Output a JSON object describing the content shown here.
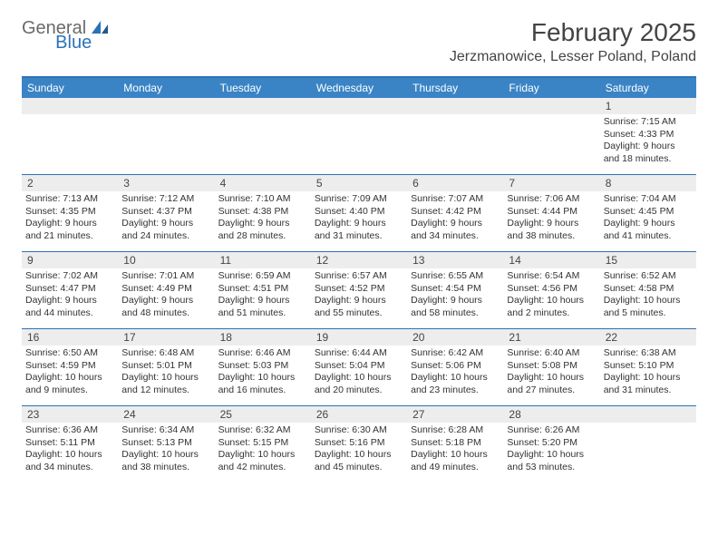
{
  "logo": {
    "general": "General",
    "blue": "Blue"
  },
  "title": "February 2025",
  "location": "Jerzmanowice, Lesser Poland, Poland",
  "colors": {
    "accent": "#3a84c6",
    "header_border": "#2b73b7",
    "daynum_bg": "#ededed",
    "text": "#333333"
  },
  "days_of_week": [
    "Sunday",
    "Monday",
    "Tuesday",
    "Wednesday",
    "Thursday",
    "Friday",
    "Saturday"
  ],
  "weeks": [
    [
      {
        "n": "",
        "sunrise": "",
        "sunset": "",
        "daylight": ""
      },
      {
        "n": "",
        "sunrise": "",
        "sunset": "",
        "daylight": ""
      },
      {
        "n": "",
        "sunrise": "",
        "sunset": "",
        "daylight": ""
      },
      {
        "n": "",
        "sunrise": "",
        "sunset": "",
        "daylight": ""
      },
      {
        "n": "",
        "sunrise": "",
        "sunset": "",
        "daylight": ""
      },
      {
        "n": "",
        "sunrise": "",
        "sunset": "",
        "daylight": ""
      },
      {
        "n": "1",
        "sunrise": "Sunrise: 7:15 AM",
        "sunset": "Sunset: 4:33 PM",
        "daylight": "Daylight: 9 hours and 18 minutes."
      }
    ],
    [
      {
        "n": "2",
        "sunrise": "Sunrise: 7:13 AM",
        "sunset": "Sunset: 4:35 PM",
        "daylight": "Daylight: 9 hours and 21 minutes."
      },
      {
        "n": "3",
        "sunrise": "Sunrise: 7:12 AM",
        "sunset": "Sunset: 4:37 PM",
        "daylight": "Daylight: 9 hours and 24 minutes."
      },
      {
        "n": "4",
        "sunrise": "Sunrise: 7:10 AM",
        "sunset": "Sunset: 4:38 PM",
        "daylight": "Daylight: 9 hours and 28 minutes."
      },
      {
        "n": "5",
        "sunrise": "Sunrise: 7:09 AM",
        "sunset": "Sunset: 4:40 PM",
        "daylight": "Daylight: 9 hours and 31 minutes."
      },
      {
        "n": "6",
        "sunrise": "Sunrise: 7:07 AM",
        "sunset": "Sunset: 4:42 PM",
        "daylight": "Daylight: 9 hours and 34 minutes."
      },
      {
        "n": "7",
        "sunrise": "Sunrise: 7:06 AM",
        "sunset": "Sunset: 4:44 PM",
        "daylight": "Daylight: 9 hours and 38 minutes."
      },
      {
        "n": "8",
        "sunrise": "Sunrise: 7:04 AM",
        "sunset": "Sunset: 4:45 PM",
        "daylight": "Daylight: 9 hours and 41 minutes."
      }
    ],
    [
      {
        "n": "9",
        "sunrise": "Sunrise: 7:02 AM",
        "sunset": "Sunset: 4:47 PM",
        "daylight": "Daylight: 9 hours and 44 minutes."
      },
      {
        "n": "10",
        "sunrise": "Sunrise: 7:01 AM",
        "sunset": "Sunset: 4:49 PM",
        "daylight": "Daylight: 9 hours and 48 minutes."
      },
      {
        "n": "11",
        "sunrise": "Sunrise: 6:59 AM",
        "sunset": "Sunset: 4:51 PM",
        "daylight": "Daylight: 9 hours and 51 minutes."
      },
      {
        "n": "12",
        "sunrise": "Sunrise: 6:57 AM",
        "sunset": "Sunset: 4:52 PM",
        "daylight": "Daylight: 9 hours and 55 minutes."
      },
      {
        "n": "13",
        "sunrise": "Sunrise: 6:55 AM",
        "sunset": "Sunset: 4:54 PM",
        "daylight": "Daylight: 9 hours and 58 minutes."
      },
      {
        "n": "14",
        "sunrise": "Sunrise: 6:54 AM",
        "sunset": "Sunset: 4:56 PM",
        "daylight": "Daylight: 10 hours and 2 minutes."
      },
      {
        "n": "15",
        "sunrise": "Sunrise: 6:52 AM",
        "sunset": "Sunset: 4:58 PM",
        "daylight": "Daylight: 10 hours and 5 minutes."
      }
    ],
    [
      {
        "n": "16",
        "sunrise": "Sunrise: 6:50 AM",
        "sunset": "Sunset: 4:59 PM",
        "daylight": "Daylight: 10 hours and 9 minutes."
      },
      {
        "n": "17",
        "sunrise": "Sunrise: 6:48 AM",
        "sunset": "Sunset: 5:01 PM",
        "daylight": "Daylight: 10 hours and 12 minutes."
      },
      {
        "n": "18",
        "sunrise": "Sunrise: 6:46 AM",
        "sunset": "Sunset: 5:03 PM",
        "daylight": "Daylight: 10 hours and 16 minutes."
      },
      {
        "n": "19",
        "sunrise": "Sunrise: 6:44 AM",
        "sunset": "Sunset: 5:04 PM",
        "daylight": "Daylight: 10 hours and 20 minutes."
      },
      {
        "n": "20",
        "sunrise": "Sunrise: 6:42 AM",
        "sunset": "Sunset: 5:06 PM",
        "daylight": "Daylight: 10 hours and 23 minutes."
      },
      {
        "n": "21",
        "sunrise": "Sunrise: 6:40 AM",
        "sunset": "Sunset: 5:08 PM",
        "daylight": "Daylight: 10 hours and 27 minutes."
      },
      {
        "n": "22",
        "sunrise": "Sunrise: 6:38 AM",
        "sunset": "Sunset: 5:10 PM",
        "daylight": "Daylight: 10 hours and 31 minutes."
      }
    ],
    [
      {
        "n": "23",
        "sunrise": "Sunrise: 6:36 AM",
        "sunset": "Sunset: 5:11 PM",
        "daylight": "Daylight: 10 hours and 34 minutes."
      },
      {
        "n": "24",
        "sunrise": "Sunrise: 6:34 AM",
        "sunset": "Sunset: 5:13 PM",
        "daylight": "Daylight: 10 hours and 38 minutes."
      },
      {
        "n": "25",
        "sunrise": "Sunrise: 6:32 AM",
        "sunset": "Sunset: 5:15 PM",
        "daylight": "Daylight: 10 hours and 42 minutes."
      },
      {
        "n": "26",
        "sunrise": "Sunrise: 6:30 AM",
        "sunset": "Sunset: 5:16 PM",
        "daylight": "Daylight: 10 hours and 45 minutes."
      },
      {
        "n": "27",
        "sunrise": "Sunrise: 6:28 AM",
        "sunset": "Sunset: 5:18 PM",
        "daylight": "Daylight: 10 hours and 49 minutes."
      },
      {
        "n": "28",
        "sunrise": "Sunrise: 6:26 AM",
        "sunset": "Sunset: 5:20 PM",
        "daylight": "Daylight: 10 hours and 53 minutes."
      },
      {
        "n": "",
        "sunrise": "",
        "sunset": "",
        "daylight": ""
      }
    ]
  ]
}
